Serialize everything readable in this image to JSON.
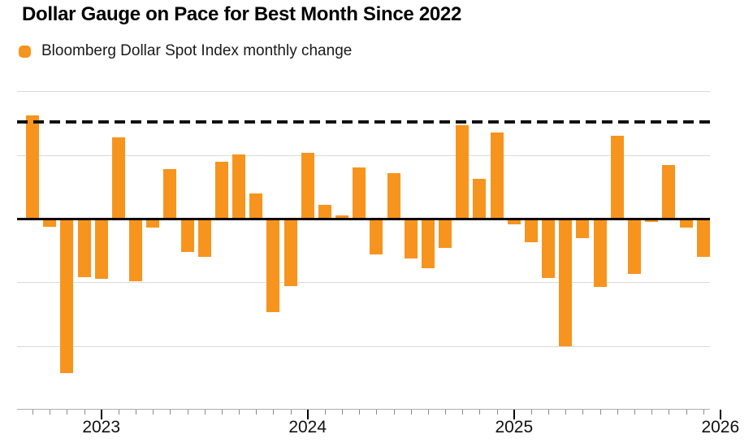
{
  "header": {
    "title": "Dollar Gauge on Pace for Best Month Since 2022",
    "legend": {
      "label": "Bloomberg Dollar Spot Index monthly change",
      "swatch_color": "#F7941E"
    }
  },
  "chart_data": {
    "type": "bar",
    "title": "Dollar Gauge on Pace for Best Month Since 2022",
    "series_name": "Bloomberg Dollar Spot Index monthly change",
    "unit": "percent",
    "bar_color": "#F7941E",
    "grid": true,
    "legend_position": "top-left",
    "ylim": [
      -6,
      4
    ],
    "grid_step": 2,
    "y_axis_labels_visible": false,
    "x": [
      "Sep 2022",
      "Oct 2022",
      "Nov 2022",
      "Dec 2022",
      "Jan 2023",
      "Feb 2023",
      "Mar 2023",
      "Apr 2023",
      "May 2023",
      "Jun 2023",
      "Jul 2023",
      "Aug 2023",
      "Sep 2023",
      "Oct 2023",
      "Nov 2023",
      "Dec 2023",
      "Jan 2024",
      "Feb 2024",
      "Mar 2024",
      "Apr 2024",
      "May 2024",
      "Jun 2024",
      "Jul 2024",
      "Aug 2024",
      "Sep 2024",
      "Oct 2024",
      "Nov 2024",
      "Dec 2024",
      "Jan 2025",
      "Feb 2025",
      "Mar 2025",
      "Apr 2025",
      "May 2025",
      "Jun 2025",
      "Jul 2025",
      "Aug 2025",
      "Sep 2025",
      "Oct 2025",
      "Nov 2025",
      "Dec 2025"
    ],
    "values": [
      3.25,
      -0.26,
      -4.85,
      -1.84,
      -1.89,
      2.55,
      -1.97,
      -0.28,
      1.55,
      -1.05,
      -1.2,
      1.78,
      2.03,
      0.79,
      -2.94,
      -2.12,
      2.06,
      0.43,
      0.1,
      1.62,
      -1.13,
      1.42,
      -1.26,
      -1.56,
      -0.92,
      2.93,
      1.25,
      2.7,
      -0.17,
      -0.75,
      -1.86,
      -4.01,
      -0.62,
      -2.15,
      2.6,
      -1.73,
      -0.11,
      1.69,
      -0.28,
      -1.19
    ],
    "reference_line": {
      "value": 3.04,
      "style": "dashed",
      "color": "#111111"
    },
    "x_tick_years": [
      {
        "label": "2023",
        "month_index": 4
      },
      {
        "label": "2024",
        "month_index": 16
      },
      {
        "label": "2025",
        "month_index": 28
      },
      {
        "label": "2026",
        "month_index": 40
      }
    ],
    "colors": {
      "gridline": "#d9d9d9",
      "zero_line": "#000000",
      "axis_line": "#adadad"
    }
  }
}
